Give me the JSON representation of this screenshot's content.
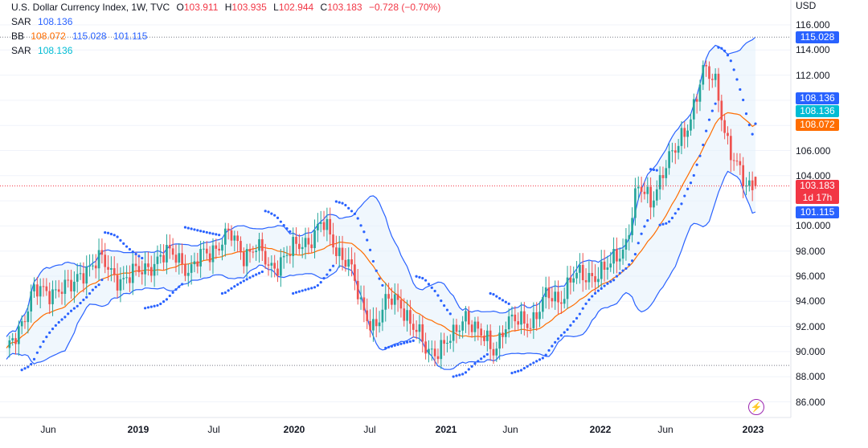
{
  "header": {
    "symbol": "U.S. Dollar Currency Index, 1W, TVC",
    "open_label": "O",
    "open": "103.911",
    "high_label": "H",
    "high": "103.935",
    "low_label": "L",
    "low": "102.944",
    "close_label": "C",
    "close": "103.183",
    "change": "−0.728 (−0.70%)",
    "sar1_label": "SAR",
    "sar1_value": "108.136",
    "bb_label": "BB",
    "bb_mid": "108.072",
    "bb_upper": "115.028",
    "bb_lower": "101.115",
    "sar2_label": "SAR",
    "sar2_value": "108.136"
  },
  "axis": {
    "unit": "USD",
    "yticks": [
      "116.000",
      "114.000",
      "112.000",
      "110.000",
      "108.000",
      "106.000",
      "104.000",
      "102.000",
      "100.000",
      "98.000",
      "96.000",
      "94.000",
      "92.000",
      "90.000",
      "88.000",
      "86.000"
    ],
    "xticks": [
      {
        "label": "Jun",
        "bold": false
      },
      {
        "label": "2019",
        "bold": true
      },
      {
        "label": "Jul",
        "bold": false
      },
      {
        "label": "2020",
        "bold": true
      },
      {
        "label": "Jul",
        "bold": false
      },
      {
        "label": "2021",
        "bold": true
      },
      {
        "label": "Jun",
        "bold": false
      },
      {
        "label": "2022",
        "bold": true
      },
      {
        "label": "Jun",
        "bold": false
      },
      {
        "label": "2023",
        "bold": true
      }
    ]
  },
  "price_labels": {
    "bb_upper": "115.028",
    "sar_a": "108.136",
    "sar_b": "108.136",
    "bb_mid": "108.072",
    "last_price": "103.183",
    "countdown": "1d 17h",
    "bb_lower": "101.115"
  },
  "colors": {
    "up": "#26a69a",
    "down": "#ef5350",
    "bb_band": "#2962ff",
    "bb_basis": "#ff6d00",
    "bb_fill": "#e3f0fb",
    "sar_dots": "#2962ff",
    "label_blue": "#2962ff",
    "label_cyan": "#00bcd4",
    "label_orange": "#ff6d00",
    "label_red": "#f23645",
    "grid": "#f0f3fa"
  },
  "chart_data": {
    "type": "candlestick",
    "title": "U.S. Dollar Currency Index, 1W, TVC",
    "ylabel": "USD",
    "ylim": [
      85,
      117
    ],
    "grid": true,
    "close_series": [
      {
        "x": "2018-04",
        "y": 89.6
      },
      {
        "x": "2018-05",
        "y": 92.0
      },
      {
        "x": "2018-06",
        "y": 94.8
      },
      {
        "x": "2018-07",
        "y": 94.5
      },
      {
        "x": "2018-08",
        "y": 95.3
      },
      {
        "x": "2018-09",
        "y": 94.9
      },
      {
        "x": "2018-10",
        "y": 96.8
      },
      {
        "x": "2018-11",
        "y": 97.3
      },
      {
        "x": "2018-12",
        "y": 96.2
      },
      {
        "x": "2019-01",
        "y": 95.8
      },
      {
        "x": "2019-02",
        "y": 96.2
      },
      {
        "x": "2019-03",
        "y": 97.1
      },
      {
        "x": "2019-04",
        "y": 97.5
      },
      {
        "x": "2019-05",
        "y": 97.8
      },
      {
        "x": "2019-06",
        "y": 96.3
      },
      {
        "x": "2019-07",
        "y": 97.7
      },
      {
        "x": "2019-08",
        "y": 98.5
      },
      {
        "x": "2019-09",
        "y": 99.2
      },
      {
        "x": "2019-10",
        "y": 97.9
      },
      {
        "x": "2019-11",
        "y": 98.3
      },
      {
        "x": "2019-12",
        "y": 96.6
      },
      {
        "x": "2020-01",
        "y": 97.5
      },
      {
        "x": "2020-02",
        "y": 98.1
      },
      {
        "x": "2020-03",
        "y": 99.0
      },
      {
        "x": "2020-04",
        "y": 100.2
      },
      {
        "x": "2020-05",
        "y": 98.3
      },
      {
        "x": "2020-06",
        "y": 97.4
      },
      {
        "x": "2020-07",
        "y": 93.3
      },
      {
        "x": "2020-08",
        "y": 92.2
      },
      {
        "x": "2020-09",
        "y": 93.9
      },
      {
        "x": "2020-10",
        "y": 94.0
      },
      {
        "x": "2020-11",
        "y": 91.9
      },
      {
        "x": "2020-12",
        "y": 89.9
      },
      {
        "x": "2021-01",
        "y": 90.5
      },
      {
        "x": "2021-02",
        "y": 90.9
      },
      {
        "x": "2021-03",
        "y": 93.2
      },
      {
        "x": "2021-04",
        "y": 91.3
      },
      {
        "x": "2021-05",
        "y": 90.0
      },
      {
        "x": "2021-06",
        "y": 92.4
      },
      {
        "x": "2021-07",
        "y": 92.2
      },
      {
        "x": "2021-08",
        "y": 92.6
      },
      {
        "x": "2021-09",
        "y": 94.2
      },
      {
        "x": "2021-10",
        "y": 94.1
      },
      {
        "x": "2021-11",
        "y": 96.0
      },
      {
        "x": "2021-12",
        "y": 95.7
      },
      {
        "x": "2022-01",
        "y": 96.5
      },
      {
        "x": "2022-02",
        "y": 96.7
      },
      {
        "x": "2022-03",
        "y": 98.3
      },
      {
        "x": "2022-04",
        "y": 103.0
      },
      {
        "x": "2022-05",
        "y": 101.8
      },
      {
        "x": "2022-06",
        "y": 104.7
      },
      {
        "x": "2022-07",
        "y": 105.9
      },
      {
        "x": "2022-08",
        "y": 108.7
      },
      {
        "x": "2022-09",
        "y": 112.1
      },
      {
        "x": "2022-10",
        "y": 111.5
      },
      {
        "x": "2022-11",
        "y": 106.0
      },
      {
        "x": "2022-12",
        "y": 103.5
      },
      {
        "x": "2023-01",
        "y": 103.2
      }
    ],
    "last": {
      "open": 103.911,
      "high": 103.935,
      "low": 102.944,
      "close": 103.183,
      "change": -0.728,
      "change_pct": -0.7
    },
    "indicators": {
      "bollinger_bands": {
        "basis": 108.072,
        "upper": 115.028,
        "lower": 101.115
      },
      "parabolic_sar": 108.136
    },
    "horizontal_lines": [
      115.028,
      88.9,
      103.183
    ]
  }
}
